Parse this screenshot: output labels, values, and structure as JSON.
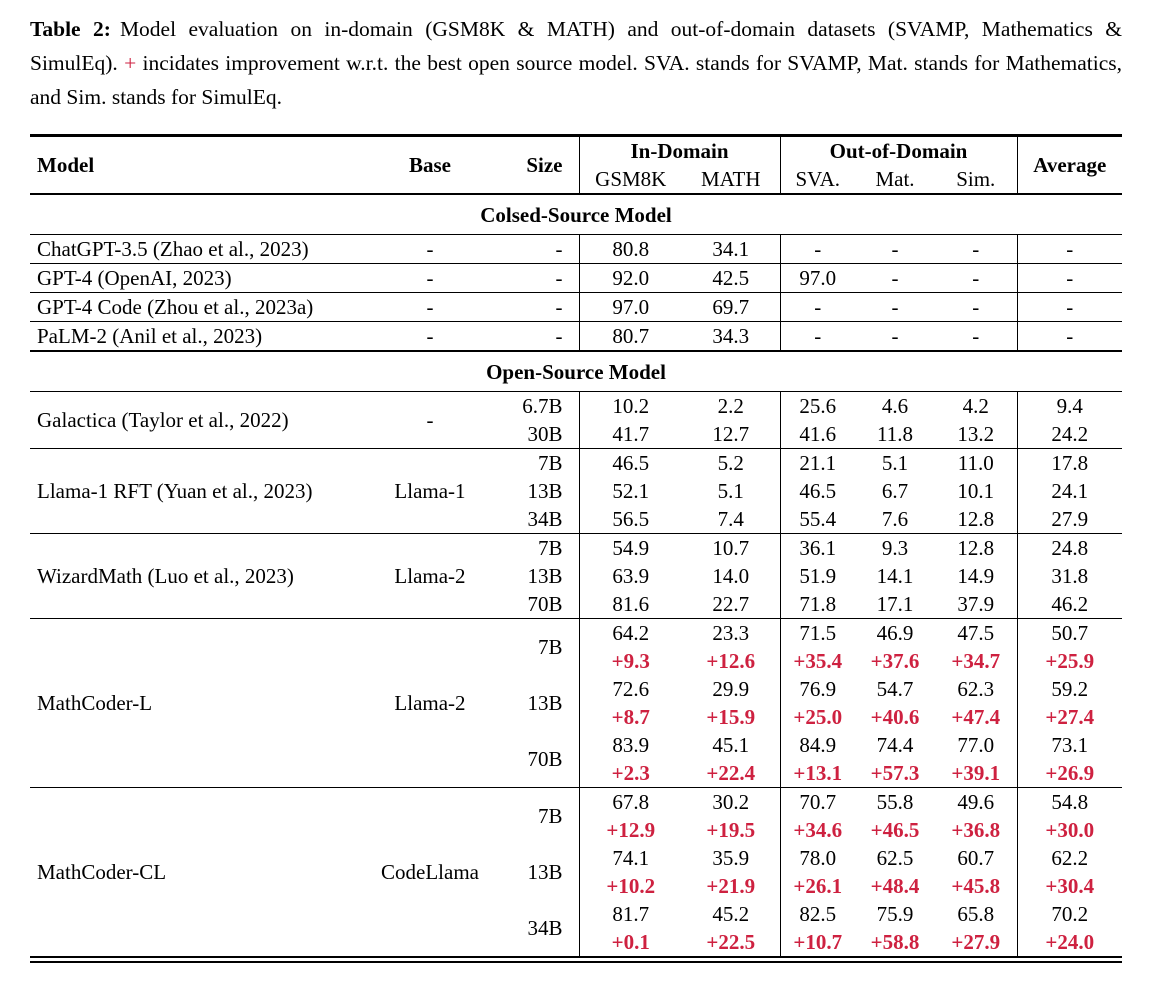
{
  "caption": {
    "label": "Table 2:",
    "text_before_plus": "Model evaluation on in-domain (GSM8K & MATH) and out-of-domain datasets (SVAMP, Mathematics & SimulEq). ",
    "plus_sign": "+",
    "text_after_plus": " incidates improvement w.r.t. the best open source model. SVA. stands for SVAMP, Mat. stands for Mathematics, and Sim. stands for SimulEq."
  },
  "colors": {
    "accent_red": "#ce2140",
    "text": "#000000",
    "rule": "#000000"
  },
  "table": {
    "headers": {
      "model": "Model",
      "base": "Base",
      "size": "Size",
      "in_domain": "In-Domain",
      "out_of_domain": "Out-of-Domain",
      "average": "Average",
      "sub": [
        "GSM8K",
        "MATH",
        "SVA.",
        "Mat.",
        "Sim."
      ]
    },
    "sections": [
      {
        "title": "Colsed-Source Model",
        "groups": [
          {
            "model": "ChatGPT-3.5 (Zhao et al., 2023)",
            "base": "-",
            "rows": [
              {
                "size": "-",
                "scores": [
                  "80.8",
                  "34.1",
                  "-",
                  "-",
                  "-",
                  "-"
                ]
              }
            ]
          },
          {
            "model": "GPT-4 (OpenAI, 2023)",
            "base": "-",
            "rows": [
              {
                "size": "-",
                "scores": [
                  "92.0",
                  "42.5",
                  "97.0",
                  "-",
                  "-",
                  "-"
                ]
              }
            ]
          },
          {
            "model": "GPT-4 Code (Zhou et al., 2023a)",
            "base": "-",
            "rows": [
              {
                "size": "-",
                "scores": [
                  "97.0",
                  "69.7",
                  "-",
                  "-",
                  "-",
                  "-"
                ]
              }
            ]
          },
          {
            "model": "PaLM-2 (Anil et al., 2023)",
            "base": "-",
            "rows": [
              {
                "size": "-",
                "scores": [
                  "80.7",
                  "34.3",
                  "-",
                  "-",
                  "-",
                  "-"
                ]
              }
            ]
          }
        ]
      },
      {
        "title": "Open-Source Model",
        "groups": [
          {
            "model": "Galactica (Taylor et al., 2022)",
            "base": "-",
            "rows": [
              {
                "size": "6.7B",
                "scores": [
                  "10.2",
                  "2.2",
                  "25.6",
                  "4.6",
                  "4.2",
                  "9.4"
                ]
              },
              {
                "size": "30B",
                "scores": [
                  "41.7",
                  "12.7",
                  "41.6",
                  "11.8",
                  "13.2",
                  "24.2"
                ]
              }
            ]
          },
          {
            "model": "Llama-1 RFT (Yuan et al., 2023)",
            "base": "Llama-1",
            "rows": [
              {
                "size": "7B",
                "scores": [
                  "46.5",
                  "5.2",
                  "21.1",
                  "5.1",
                  "11.0",
                  "17.8"
                ]
              },
              {
                "size": "13B",
                "scores": [
                  "52.1",
                  "5.1",
                  "46.5",
                  "6.7",
                  "10.1",
                  "24.1"
                ]
              },
              {
                "size": "34B",
                "scores": [
                  "56.5",
                  "7.4",
                  "55.4",
                  "7.6",
                  "12.8",
                  "27.9"
                ]
              }
            ]
          },
          {
            "model": "WizardMath (Luo et al., 2023)",
            "base": "Llama-2",
            "rows": [
              {
                "size": "7B",
                "scores": [
                  "54.9",
                  "10.7",
                  "36.1",
                  "9.3",
                  "12.8",
                  "24.8"
                ]
              },
              {
                "size": "13B",
                "scores": [
                  "63.9",
                  "14.0",
                  "51.9",
                  "14.1",
                  "14.9",
                  "31.8"
                ]
              },
              {
                "size": "70B",
                "scores": [
                  "81.6",
                  "22.7",
                  "71.8",
                  "17.1",
                  "37.9",
                  "46.2"
                ]
              }
            ]
          },
          {
            "model": "MathCoder-L",
            "base": "Llama-2",
            "rows": [
              {
                "size": "7B",
                "scores": [
                  "64.2",
                  "23.3",
                  "71.5",
                  "46.9",
                  "47.5",
                  "50.7"
                ],
                "deltas": [
                  "+9.3",
                  "+12.6",
                  "+35.4",
                  "+37.6",
                  "+34.7",
                  "+25.9"
                ]
              },
              {
                "size": "13B",
                "scores": [
                  "72.6",
                  "29.9",
                  "76.9",
                  "54.7",
                  "62.3",
                  "59.2"
                ],
                "deltas": [
                  "+8.7",
                  "+15.9",
                  "+25.0",
                  "+40.6",
                  "+47.4",
                  "+27.4"
                ]
              },
              {
                "size": "70B",
                "scores": [
                  "83.9",
                  "45.1",
                  "84.9",
                  "74.4",
                  "77.0",
                  "73.1"
                ],
                "deltas": [
                  "+2.3",
                  "+22.4",
                  "+13.1",
                  "+57.3",
                  "+39.1",
                  "+26.9"
                ]
              }
            ]
          },
          {
            "model": "MathCoder-CL",
            "base": "CodeLlama",
            "rows": [
              {
                "size": "7B",
                "scores": [
                  "67.8",
                  "30.2",
                  "70.7",
                  "55.8",
                  "49.6",
                  "54.8"
                ],
                "deltas": [
                  "+12.9",
                  "+19.5",
                  "+34.6",
                  "+46.5",
                  "+36.8",
                  "+30.0"
                ]
              },
              {
                "size": "13B",
                "scores": [
                  "74.1",
                  "35.9",
                  "78.0",
                  "62.5",
                  "60.7",
                  "62.2"
                ],
                "deltas": [
                  "+10.2",
                  "+21.9",
                  "+26.1",
                  "+48.4",
                  "+45.8",
                  "+30.4"
                ]
              },
              {
                "size": "34B",
                "scores": [
                  "81.7",
                  "45.2",
                  "82.5",
                  "75.9",
                  "65.8",
                  "70.2"
                ],
                "deltas": [
                  "+0.1",
                  "+22.5",
                  "+10.7",
                  "+58.8",
                  "+27.9",
                  "+24.0"
                ]
              }
            ]
          }
        ]
      }
    ]
  }
}
